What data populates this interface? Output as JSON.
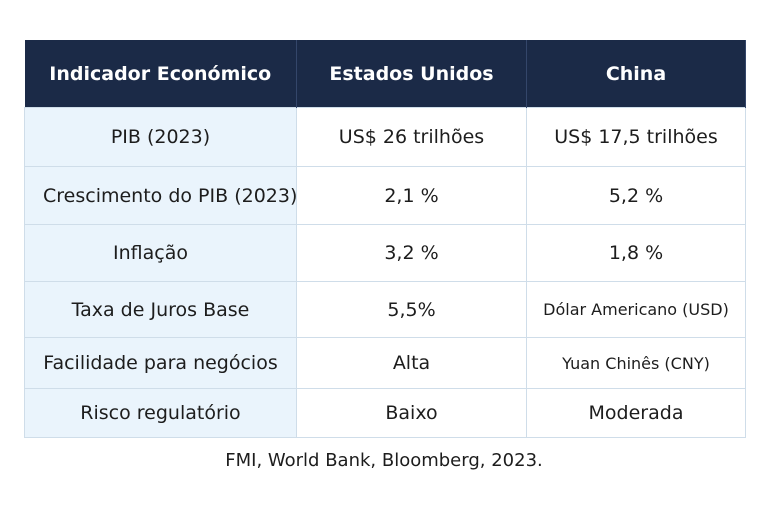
{
  "table": {
    "headers": [
      "Indicador Económico",
      "Estados Unidos",
      "China"
    ],
    "rows": [
      [
        "PIB (2023)",
        "US$ 26 trilhões",
        "US$ 17,5 trilhões"
      ],
      [
        "Crescimento do PIB (2023)",
        "2,1 %",
        "5,2 %"
      ],
      [
        "Inflação",
        "3,2 %",
        "1,8 %"
      ],
      [
        "Taxa de Juros Base",
        "5,5%",
        "Dólar Americano (USD)"
      ],
      [
        "Facilidade para negócios",
        "Alta",
        "Yuan Chinês (CNY)"
      ],
      [
        "Risco regulatório",
        "Baixo",
        "Moderada"
      ]
    ]
  },
  "source": "FMI, World Bank, Bloomberg, 2023."
}
